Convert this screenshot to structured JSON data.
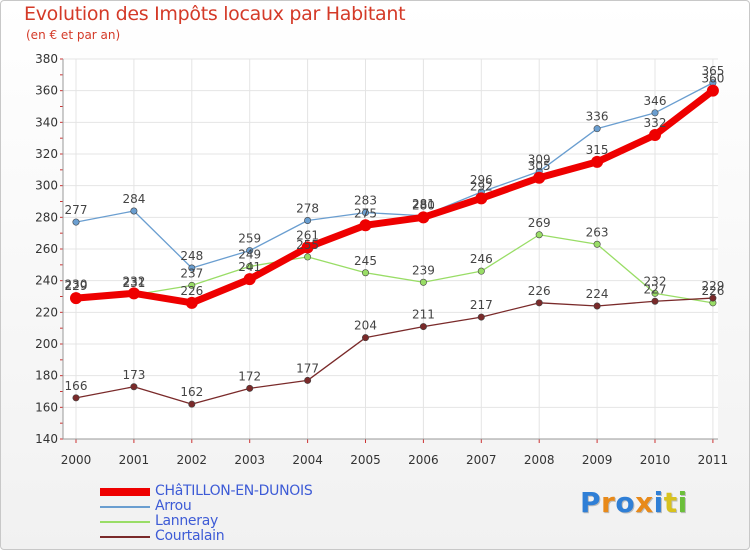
{
  "chart_data": {
    "type": "line",
    "title": "Evolution des Impôts locaux par Habitant",
    "subtitle": "(en € et par an)",
    "x": [
      "2000",
      "2001",
      "2002",
      "2003",
      "2004",
      "2005",
      "2006",
      "2007",
      "2008",
      "2009",
      "2010",
      "2011"
    ],
    "ylim": [
      140,
      380
    ],
    "yticks": [
      140,
      160,
      180,
      200,
      220,
      240,
      260,
      280,
      300,
      320,
      340,
      360,
      380
    ],
    "grid": true,
    "legend_position": "bottom-left",
    "series": [
      {
        "name": "CHâTILLON-EN-DUNOIS",
        "color": "#ee0000",
        "values": [
          229,
          232,
          226,
          241,
          261,
          275,
          280,
          292,
          305,
          315,
          332,
          360
        ]
      },
      {
        "name": "Arrou",
        "color": "#6a9ed0",
        "values": [
          277,
          284,
          248,
          259,
          278,
          283,
          281,
          296,
          309,
          336,
          346,
          365
        ]
      },
      {
        "name": "Lanneray",
        "color": "#99dd66",
        "values": [
          230,
          231,
          237,
          249,
          255,
          245,
          239,
          246,
          269,
          263,
          232,
          226
        ]
      },
      {
        "name": "Courtalain",
        "color": "#7a2a2a",
        "values": [
          166,
          173,
          162,
          172,
          177,
          204,
          211,
          217,
          226,
          224,
          227,
          229
        ]
      }
    ]
  },
  "logo": {
    "text": "Proxiti",
    "colors": [
      "#2f7fd6",
      "#e88a1a",
      "#2f7fd6",
      "#e88a1a",
      "#2f7fd6",
      "#d8c21e",
      "#6bbf3a"
    ]
  }
}
